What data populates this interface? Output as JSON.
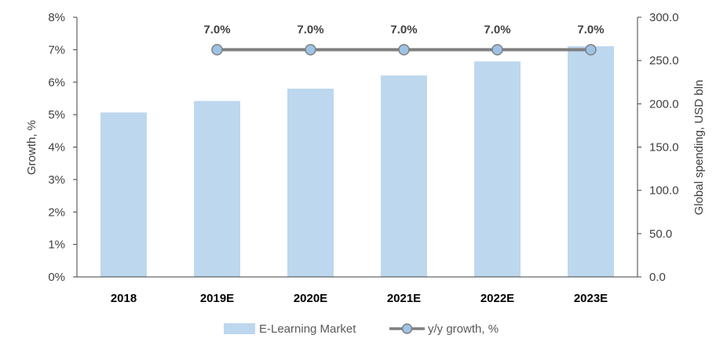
{
  "chart_data": {
    "type": "bar",
    "categories": [
      "2018",
      "2019E",
      "2020E",
      "2021E",
      "2022E",
      "2023E"
    ],
    "series": [
      {
        "name": "E-Learning Market",
        "type": "bar",
        "axis": "right",
        "values": [
          190.0,
          203.3,
          217.5,
          232.7,
          249.0,
          266.5
        ],
        "color": "#BDD7EE"
      },
      {
        "name": "y/y growth, %",
        "type": "line",
        "axis": "left",
        "values": [
          null,
          7.0,
          7.0,
          7.0,
          7.0,
          7.0
        ],
        "data_labels": [
          "",
          "7.0%",
          "7.0%",
          "7.0%",
          "7.0%",
          "7.0%"
        ],
        "line_color": "#7F7F7F",
        "marker_color": "#9DC3E6"
      }
    ],
    "left_axis": {
      "label": "Growth, %",
      "ylim": [
        0,
        8
      ],
      "ticks": [
        0,
        1,
        2,
        3,
        4,
        5,
        6,
        7,
        8
      ],
      "tick_labels": [
        "0%",
        "1%",
        "2%",
        "3%",
        "4%",
        "5%",
        "6%",
        "7%",
        "8%"
      ]
    },
    "right_axis": {
      "label": "Global spending, USD bln",
      "ylim": [
        0,
        300
      ],
      "ticks": [
        0,
        50,
        100,
        150,
        200,
        250,
        300
      ],
      "tick_labels": [
        "0.0",
        "50.0",
        "100.0",
        "150.0",
        "200.0",
        "250.0",
        "300.0"
      ]
    },
    "grid": false,
    "legend_position": "bottom",
    "legend": [
      {
        "label": "E-Learning Market",
        "kind": "bar"
      },
      {
        "label": "y/y growth, %",
        "kind": "line"
      }
    ],
    "axis_color": "#404040"
  }
}
